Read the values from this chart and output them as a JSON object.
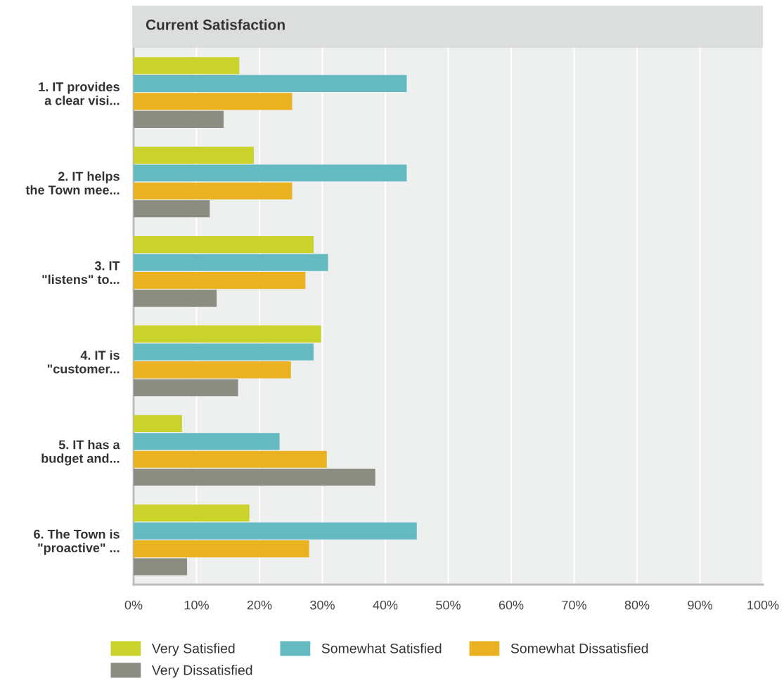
{
  "chart_data": {
    "type": "bar",
    "orientation": "horizontal",
    "title": "Current Satisfaction",
    "categories": [
      "1. IT provides\na clear visi...",
      "2. IT helps\nthe Town mee...",
      "3. IT\n\"listens\" to...",
      "4. IT is\n\"customer...",
      "5. IT has a\nbudget and...",
      "6. The Town is\n\"proactive\" ..."
    ],
    "series": [
      {
        "name": "Very Satisfied",
        "color": "#c9d32b",
        "values": [
          16.8,
          19.1,
          28.6,
          29.8,
          7.7,
          18.4
        ]
      },
      {
        "name": "Somewhat Satisfied",
        "color": "#65bac2",
        "values": [
          43.4,
          43.4,
          30.9,
          28.6,
          23.2,
          45.0
        ]
      },
      {
        "name": "Somewhat Dissatisfied",
        "color": "#eab221",
        "values": [
          25.2,
          25.2,
          27.3,
          25.0,
          30.7,
          27.9
        ]
      },
      {
        "name": "Very Dissatisfied",
        "color": "#8b8c82",
        "values": [
          14.3,
          12.1,
          13.2,
          16.6,
          38.4,
          8.5
        ]
      }
    ],
    "xlim": [
      0,
      100
    ],
    "xticks": [
      {
        "value": 0,
        "label": "0%"
      },
      {
        "value": 10,
        "label": "10%"
      },
      {
        "value": 20,
        "label": "20%"
      },
      {
        "value": 30,
        "label": "30%"
      },
      {
        "value": 40,
        "label": "40%"
      },
      {
        "value": 50,
        "label": "50%"
      },
      {
        "value": 60,
        "label": "60%"
      },
      {
        "value": 70,
        "label": "70%"
      },
      {
        "value": 80,
        "label": "80%"
      },
      {
        "value": 90,
        "label": "90%"
      },
      {
        "value": 100,
        "label": "100%"
      }
    ],
    "grid": "x",
    "legend": "bottom"
  }
}
